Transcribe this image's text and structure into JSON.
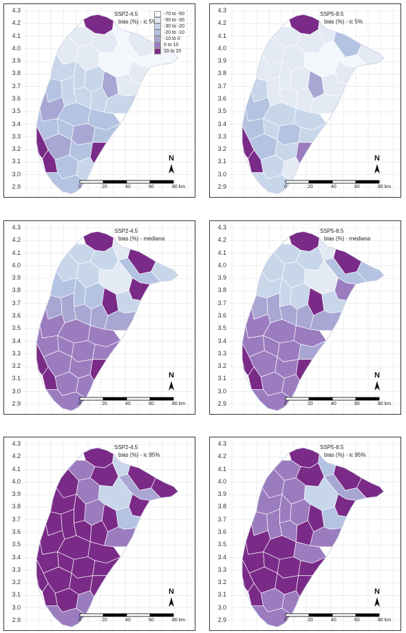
{
  "panels": [
    {
      "scenario": "SSP2-4.5",
      "stat": "bias (%) - ic 5%",
      "scheme": "low45",
      "legend": true
    },
    {
      "scenario": "SSP5-8.5",
      "stat": "bias (%) - ic 5%",
      "scheme": "low85",
      "legend": false
    },
    {
      "scenario": "SSP2-4.5",
      "stat": "bias (%) - mediana",
      "scheme": "med45",
      "legend": false
    },
    {
      "scenario": "SSP5-8.5",
      "stat": "bias (%) - mediana",
      "scheme": "med85",
      "legend": false
    },
    {
      "scenario": "SSP2-4.5",
      "stat": "bias (%) - ic 95%",
      "scheme": "high45",
      "legend": false
    },
    {
      "scenario": "SSP5-8.5",
      "stat": "bias (%) - ic 95%",
      "scheme": "high85",
      "legend": false
    }
  ],
  "y_ticks": [
    "4.3",
    "4.2",
    "4.1",
    "4.0",
    "3.9",
    "3.8",
    "3.7",
    "3.6",
    "3.5",
    "3.4",
    "3.3",
    "3.2",
    "3.1",
    "3.0",
    "2.9"
  ],
  "legend": {
    "classes": [
      {
        "label": "-70 to -50",
        "color": "#f3f6fb"
      },
      {
        "label": "-50 to -30",
        "color": "#e3eaf4"
      },
      {
        "label": "-30 to -20",
        "color": "#c8d6ea"
      },
      {
        "label": "-20 to -10",
        "color": "#b3c3e1"
      },
      {
        "label": "-10 to 0",
        "color": "#a8a6d2"
      },
      {
        "label": "0 to 10",
        "color": "#9b7cbf"
      },
      {
        "label": "10 to 20",
        "color": "#7a2a87"
      }
    ]
  },
  "scale_bar": {
    "ticks": [
      "0",
      "20",
      "40",
      "60",
      "80 km"
    ]
  },
  "north_label": "N"
}
